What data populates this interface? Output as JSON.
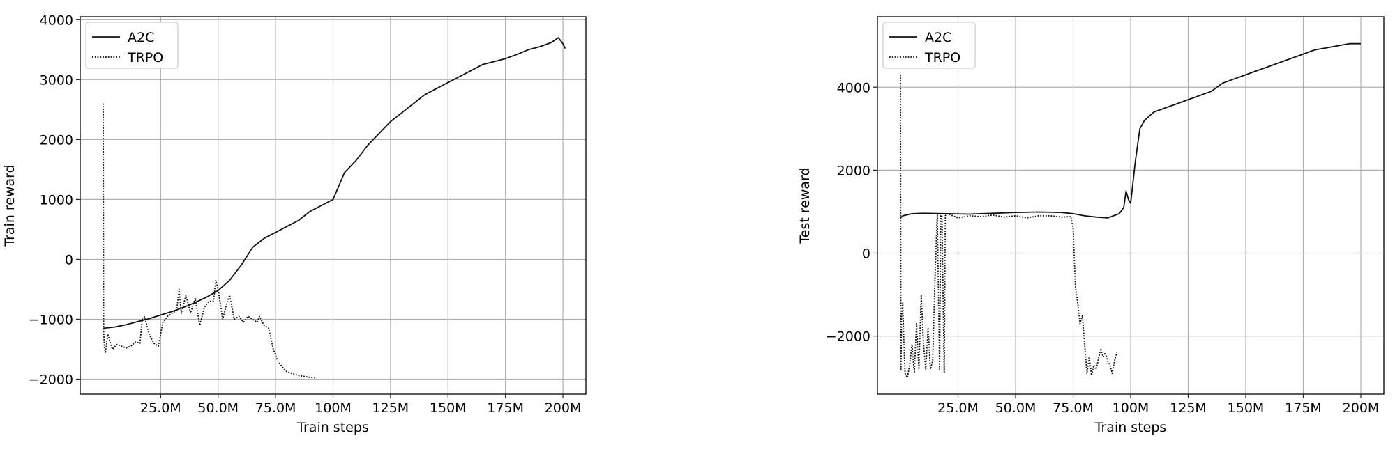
{
  "chart_data": [
    {
      "type": "line",
      "xlabel": "Train steps",
      "ylabel": "Train reward",
      "xlim": [
        -10000000,
        210000000
      ],
      "ylim": [
        -2250,
        4050
      ],
      "xticks": [
        25000000,
        50000000,
        75000000,
        100000000,
        125000000,
        150000000,
        175000000,
        200000000
      ],
      "xtick_labels": [
        "25.0M",
        "50.0M",
        "75.0M",
        "100M",
        "125M",
        "150M",
        "175M",
        "200M"
      ],
      "yticks": [
        -2000,
        -1000,
        0,
        1000,
        2000,
        3000,
        4000
      ],
      "ytick_labels": [
        "−2000",
        "−1000",
        "0",
        "1000",
        "2000",
        "3000",
        "4000"
      ],
      "grid": true,
      "legend_position": "upper-left",
      "series": [
        {
          "name": "A2C",
          "style": "solid",
          "x": [
            0,
            5000000,
            10000000,
            15000000,
            20000000,
            25000000,
            30000000,
            35000000,
            40000000,
            45000000,
            50000000,
            55000000,
            60000000,
            65000000,
            70000000,
            75000000,
            80000000,
            85000000,
            90000000,
            95000000,
            100000000,
            105000000,
            110000000,
            115000000,
            120000000,
            125000000,
            130000000,
            135000000,
            140000000,
            145000000,
            150000000,
            155000000,
            160000000,
            165000000,
            170000000,
            175000000,
            180000000,
            185000000,
            190000000,
            195000000,
            198000000,
            200000000,
            201000000
          ],
          "y": [
            -1150,
            -1130,
            -1090,
            -1040,
            -990,
            -930,
            -870,
            -800,
            -720,
            -630,
            -520,
            -350,
            -100,
            200,
            350,
            450,
            550,
            650,
            800,
            900,
            1000,
            1450,
            1650,
            1900,
            2100,
            2300,
            2450,
            2600,
            2750,
            2850,
            2950,
            3050,
            3150,
            3250,
            3300,
            3350,
            3420,
            3500,
            3550,
            3620,
            3700,
            3600,
            3520
          ]
        },
        {
          "name": "TRPO",
          "style": "dotted",
          "x": [
            0,
            200000,
            600000,
            1000000,
            2000000,
            4000000,
            6000000,
            8000000,
            10000000,
            12000000,
            14000000,
            16000000,
            17000000,
            18000000,
            20000000,
            22000000,
            24000000,
            26000000,
            28000000,
            30000000,
            32000000,
            33000000,
            34000000,
            36000000,
            38000000,
            40000000,
            42000000,
            44000000,
            46000000,
            48000000,
            49000000,
            50000000,
            52000000,
            54000000,
            55000000,
            57000000,
            59000000,
            61000000,
            63000000,
            65000000,
            67000000,
            68000000,
            70000000,
            72000000,
            74000000,
            76000000,
            78000000,
            80000000,
            85000000,
            90000000,
            93000000
          ],
          "y": [
            2600,
            -1200,
            -1500,
            -1550,
            -1250,
            -1500,
            -1420,
            -1450,
            -1480,
            -1450,
            -1380,
            -1400,
            -1000,
            -960,
            -1250,
            -1400,
            -1450,
            -1050,
            -950,
            -900,
            -850,
            -500,
            -900,
            -600,
            -900,
            -650,
            -1100,
            -800,
            -700,
            -700,
            -350,
            -500,
            -1000,
            -700,
            -600,
            -1000,
            -950,
            -1050,
            -950,
            -1000,
            -1050,
            -950,
            -1100,
            -1150,
            -1500,
            -1700,
            -1800,
            -1880,
            -1940,
            -1970,
            -1980
          ]
        }
      ]
    },
    {
      "type": "line",
      "xlabel": "Train steps",
      "ylabel": "Test reward",
      "xlim": [
        -10000000,
        210000000
      ],
      "ylim": [
        -3400,
        5700
      ],
      "xticks": [
        25000000,
        50000000,
        75000000,
        100000000,
        125000000,
        150000000,
        175000000,
        200000000
      ],
      "xtick_labels": [
        "25.0M",
        "50.0M",
        "75.0M",
        "100M",
        "125M",
        "150M",
        "175M",
        "200M"
      ],
      "yticks": [
        -2000,
        0,
        2000,
        4000
      ],
      "ytick_labels": [
        "−2000",
        "0",
        "2000",
        "4000"
      ],
      "grid": true,
      "legend_position": "upper-left",
      "series": [
        {
          "name": "A2C",
          "style": "solid",
          "x": [
            0,
            1000000,
            5000000,
            10000000,
            20000000,
            30000000,
            40000000,
            50000000,
            60000000,
            70000000,
            75000000,
            80000000,
            85000000,
            90000000,
            95000000,
            97000000,
            98000000,
            99000000,
            100000000,
            102000000,
            104000000,
            106000000,
            110000000,
            115000000,
            120000000,
            125000000,
            130000000,
            135000000,
            140000000,
            145000000,
            150000000,
            155000000,
            160000000,
            165000000,
            170000000,
            175000000,
            180000000,
            185000000,
            190000000,
            195000000,
            200000000
          ],
          "y": [
            850,
            900,
            950,
            960,
            950,
            940,
            960,
            980,
            990,
            980,
            950,
            900,
            870,
            850,
            950,
            1100,
            1500,
            1300,
            1200,
            2200,
            3000,
            3200,
            3400,
            3500,
            3600,
            3700,
            3800,
            3900,
            4100,
            4200,
            4300,
            4400,
            4500,
            4600,
            4700,
            4800,
            4900,
            4950,
            5000,
            5050,
            5050
          ]
        },
        {
          "name": "TRPO",
          "style": "dotted",
          "x": [
            0,
            200000,
            500000,
            1000000,
            1500000,
            2000000,
            3000000,
            4000000,
            5000000,
            6000000,
            7000000,
            8000000,
            9000000,
            10000000,
            11000000,
            12000000,
            13000000,
            14000000,
            15000000,
            16000000,
            17000000,
            17500000,
            18000000,
            19000000,
            19500000,
            20000000,
            22000000,
            25000000,
            30000000,
            35000000,
            40000000,
            45000000,
            50000000,
            55000000,
            60000000,
            65000000,
            70000000,
            74000000,
            75000000,
            76000000,
            77000000,
            78000000,
            79000000,
            80000000,
            81000000,
            82000000,
            83000000,
            84000000,
            85000000,
            87000000,
            88000000,
            89000000,
            90000000,
            91000000,
            92000000,
            93000000,
            94000000
          ],
          "y": [
            4300,
            -2800,
            -1500,
            -1200,
            -2200,
            -2900,
            -3000,
            -2700,
            -2200,
            -2900,
            -1700,
            -2800,
            -1000,
            -2200,
            -2800,
            -1800,
            -2800,
            -2600,
            -600,
            950,
            -2800,
            900,
            950,
            -2900,
            900,
            950,
            920,
            850,
            900,
            880,
            920,
            870,
            900,
            850,
            900,
            900,
            870,
            880,
            600,
            -800,
            -1200,
            -1700,
            -1500,
            -2200,
            -2900,
            -2500,
            -2950,
            -2700,
            -2800,
            -2300,
            -2500,
            -2400,
            -2600,
            -2700,
            -2900,
            -2600,
            -2400
          ]
        }
      ]
    }
  ]
}
